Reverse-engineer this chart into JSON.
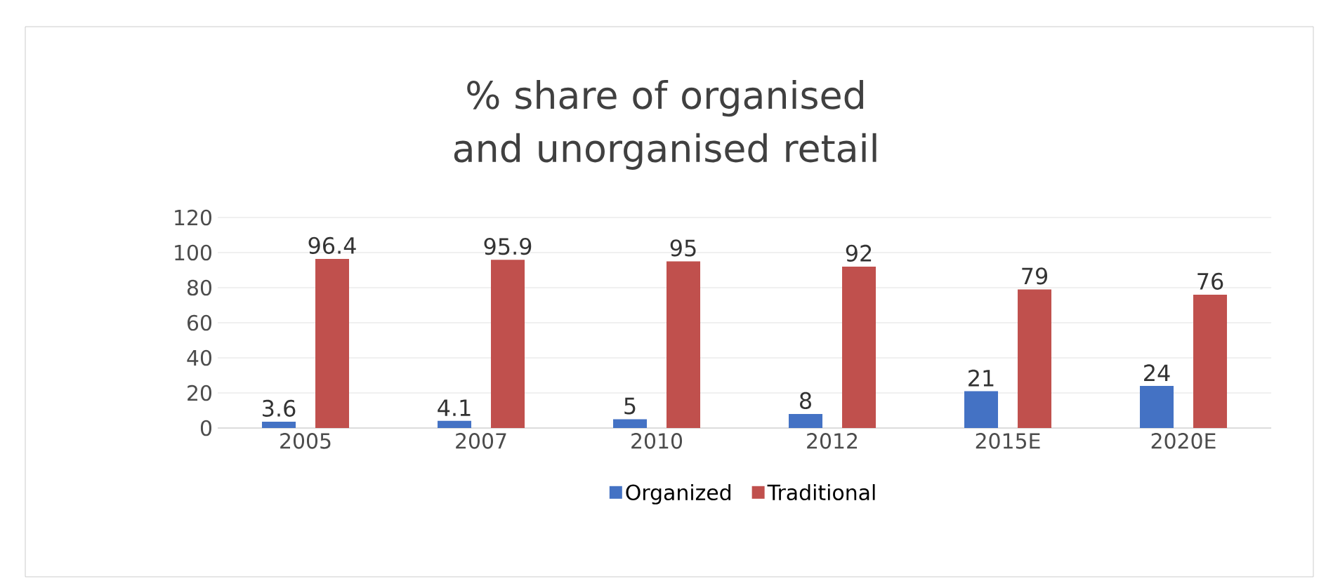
{
  "chart_data": {
    "type": "bar",
    "title": "% share of organised and unorganised retail",
    "categories": [
      "2005",
      "2007",
      "2010",
      "2012",
      "2015E",
      "2020E"
    ],
    "series": [
      {
        "name": "Organized",
        "color": "#4472c4",
        "values": [
          3.6,
          4.1,
          5,
          8,
          21,
          24
        ]
      },
      {
        "name": "Traditional",
        "color": "#c0504d",
        "values": [
          96.4,
          95.9,
          95,
          92,
          79,
          76
        ]
      }
    ],
    "ylim": [
      0,
      120
    ],
    "yticks": [
      0,
      20,
      40,
      60,
      80,
      100,
      120
    ],
    "grid": "y",
    "legend": "bottom",
    "data_labels": true
  }
}
